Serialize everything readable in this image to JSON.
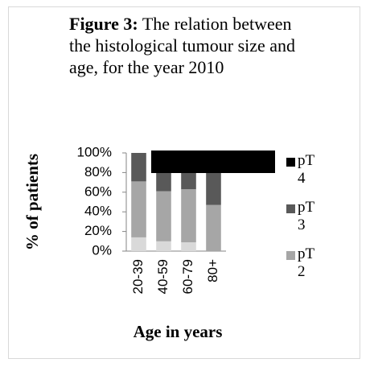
{
  "chart_data": {
    "type": "bar",
    "stacked": true,
    "title_label": "Figure 3:",
    "title": "The relation between the histological tumour size and age, for the year 2010",
    "x_label": "Age in years",
    "y_label": "% of patients",
    "categories": [
      "20-39",
      "40-59",
      "60-79",
      "80+"
    ],
    "series": [
      {
        "name": null,
        "color": "#d9d9d9",
        "values": [
          14,
          10,
          9,
          0
        ]
      },
      {
        "name": "pT2",
        "color": "#a6a6a6",
        "values": [
          57,
          51,
          54,
          47
        ]
      },
      {
        "name": "pT3",
        "color": "#595959",
        "values": [
          29,
          34,
          32,
          42
        ]
      },
      {
        "name": "pT4",
        "color": "#000000",
        "values": [
          0,
          5,
          5,
          5
        ]
      }
    ],
    "ylim": [
      0,
      100
    ],
    "yticks": [
      {
        "value": 0,
        "label": "0%"
      },
      {
        "value": 20,
        "label": "20%"
      },
      {
        "value": 40,
        "label": "40%"
      },
      {
        "value": 60,
        "label": "60%"
      },
      {
        "value": 80,
        "label": "80%"
      },
      {
        "value": 100,
        "label": "100%"
      }
    ]
  }
}
